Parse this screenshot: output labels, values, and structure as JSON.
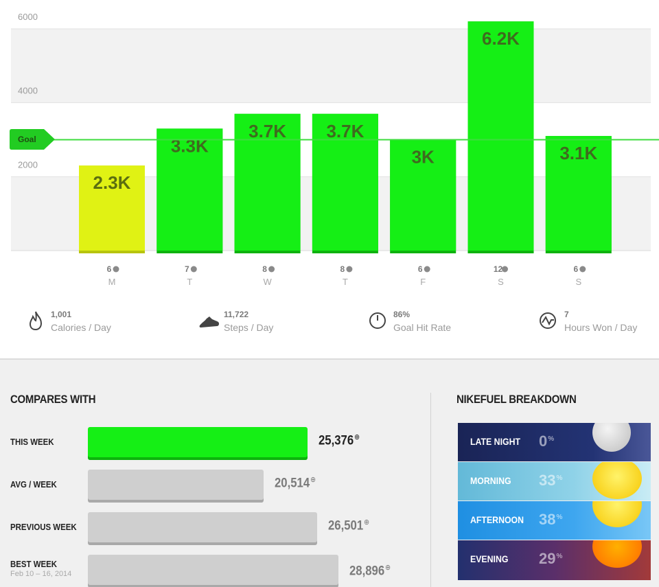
{
  "chart_data": {
    "type": "bar",
    "categories": [
      "M",
      "T",
      "W",
      "T",
      "F",
      "S",
      "S"
    ],
    "values": [
      2300,
      3300,
      3700,
      3700,
      3000,
      6200,
      3100
    ],
    "value_labels": [
      "2.3K",
      "3.3K",
      "3.7K",
      "3.7K",
      "3K",
      "6.2K",
      "3.1K"
    ],
    "session_counts": [
      "6",
      "7",
      "8",
      "8",
      "6",
      "12",
      "6"
    ],
    "goal": 3000,
    "goal_label": "Goal",
    "yticks": [
      2000,
      4000,
      6000
    ],
    "ylim": [
      0,
      6000
    ],
    "title": "",
    "xlabel": "",
    "ylabel": ""
  },
  "colors": {
    "met_goal": "#15ef15",
    "below_goal": "#e0f214",
    "goal_line": "#3edc3e",
    "band": "#f2f2f2"
  },
  "stats": [
    {
      "value": "1,001",
      "label": "Calories / Day",
      "icon": "flame-icon"
    },
    {
      "value": "11,722",
      "label": "Steps / Day",
      "icon": "shoe-icon"
    },
    {
      "value": "86%",
      "label": "Goal Hit Rate",
      "icon": "gauge-icon"
    },
    {
      "value": "7",
      "label": "Hours Won / Day",
      "icon": "pulse-icon"
    }
  ],
  "compares": {
    "title": "COMPARES WITH",
    "rows": [
      {
        "label": "THIS WEEK",
        "sub": "",
        "value": "25,376",
        "fraction": 1.0
      },
      {
        "label": "AVG / WEEK",
        "sub": "",
        "value": "20,514",
        "fraction": 0.8
      },
      {
        "label": "PREVIOUS WEEK",
        "sub": "",
        "value": "26,501",
        "fraction": 1.045
      },
      {
        "label": "BEST WEEK",
        "sub": "Feb 10 – 16, 2014",
        "value": "28,896",
        "fraction": 1.14
      }
    ]
  },
  "breakdown": {
    "title": "NIKEFUEL BREAKDOWN",
    "rows": [
      {
        "label": "LATE NIGHT",
        "percent": "0",
        "icon": "moon-icon"
      },
      {
        "label": "MORNING",
        "percent": "33",
        "icon": "sun-icon"
      },
      {
        "label": "AFTERNOON",
        "percent": "38",
        "icon": "sun-icon"
      },
      {
        "label": "EVENING",
        "percent": "29",
        "icon": "sunset-icon"
      }
    ]
  }
}
